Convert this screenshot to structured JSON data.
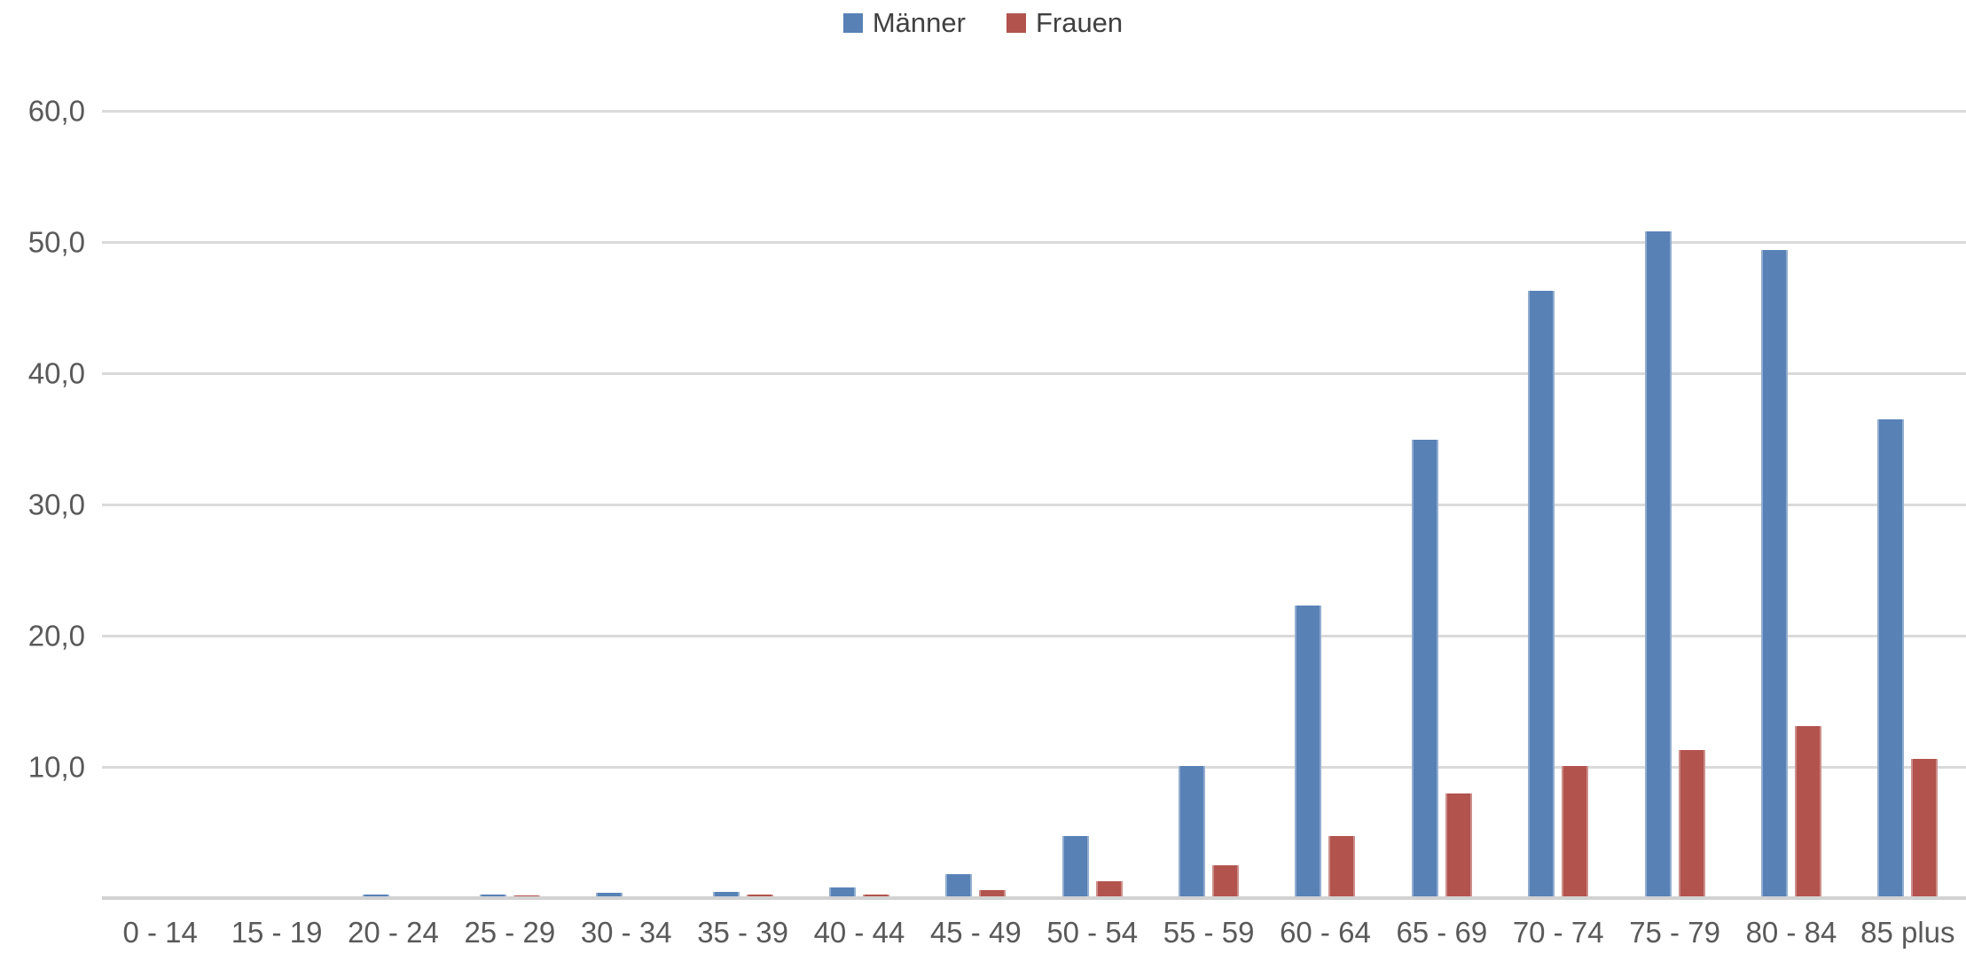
{
  "chart_data": {
    "type": "bar",
    "title": "",
    "xlabel": "",
    "ylabel": "",
    "categories": [
      "0 - 14",
      "15 - 19",
      "20 - 24",
      "25 - 29",
      "30 - 34",
      "35 - 39",
      "40 - 44",
      "45 - 49",
      "50 - 54",
      "55 - 59",
      "60 - 64",
      "65 - 69",
      "70 - 74",
      "75 - 79",
      "80 - 84",
      "85 plus"
    ],
    "series": [
      {
        "name": "Männer",
        "color": "#5881B6",
        "values": [
          0.0,
          0.0,
          0.3,
          0.3,
          0.4,
          0.5,
          0.8,
          1.8,
          4.7,
          10.1,
          22.3,
          34.9,
          46.3,
          50.8,
          49.4,
          36.5
        ]
      },
      {
        "name": "Frauen",
        "color": "#B2534E",
        "values": [
          0.0,
          0.0,
          0.0,
          0.2,
          0.0,
          0.3,
          0.3,
          0.6,
          1.3,
          2.5,
          4.7,
          8.0,
          10.1,
          11.3,
          13.1,
          10.6
        ]
      }
    ],
    "ylim": [
      0,
      60
    ],
    "ytick_step": 10,
    "yticks": [
      10,
      20,
      30,
      40,
      50,
      60
    ],
    "ytick_labels": [
      "10,0",
      "20,0",
      "30,0",
      "40,0",
      "50,0",
      "60,0"
    ],
    "decimal_style": "comma",
    "grid": true,
    "gridline_color": "#DADADA",
    "axis_line_color": "#D2D2D2",
    "text_color": "#595959",
    "legend_position": "top-center",
    "background_color": "#FFFFFF"
  }
}
